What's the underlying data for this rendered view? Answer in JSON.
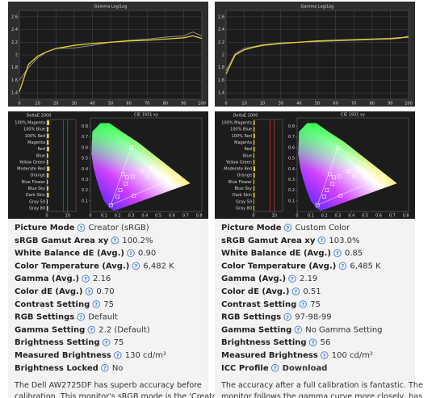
{
  "help_icon": "?",
  "columns": [
    {
      "gamma": {
        "title": "Gamma Log/Log",
        "x": [
          0,
          5,
          10,
          15,
          20,
          30,
          40,
          50,
          60,
          70,
          80,
          90,
          95,
          100
        ],
        "xlim": [
          0,
          100
        ],
        "xticks": [
          0,
          10,
          20,
          30,
          40,
          50,
          60,
          70,
          80,
          90,
          100
        ],
        "ylim": [
          1.3,
          2.7
        ],
        "yticks": [
          1.4,
          1.6,
          1.8,
          2,
          2.2,
          2.4,
          2.6
        ],
        "series": [
          {
            "color": "#e6d228",
            "values": [
              1.42,
              1.85,
              1.98,
              2.05,
              2.1,
              2.15,
              2.18,
              2.2,
              2.22,
              2.23,
              2.25,
              2.27,
              2.3,
              2.26
            ]
          },
          {
            "color": "#9a9a9a",
            "values": [
              1.6,
              1.8,
              1.95,
              2.05,
              2.1,
              2.11,
              2.15,
              2.2,
              2.23,
              2.25,
              2.28,
              2.3,
              2.36,
              2.3
            ]
          }
        ]
      },
      "delta": {
        "title": "DeltaE 2000",
        "labels": [
          "100% Magenta",
          "100% Blue",
          "100% Red",
          "Magenta",
          "Red",
          "Blue",
          "Yellow Green",
          "Moderate Red",
          "Orange",
          "Blue Flower",
          "Blue Sky",
          "Dark Skin",
          "Gray 50",
          "Gray 80"
        ],
        "values": [
          1.2,
          0.8,
          1.0,
          0.9,
          1.1,
          0.7,
          0.6,
          1.3,
          0.9,
          0.5,
          0.8,
          1.0,
          0.4,
          0.6
        ],
        "color": "#e6d228",
        "xlim": [
          0,
          14
        ],
        "xticks": [
          0,
          10
        ],
        "limits": [
          8,
          10
        ]
      },
      "cie": {
        "title": "CIE 1931 xy",
        "xlim": [
          0,
          0.82
        ],
        "ylim": [
          0,
          0.88
        ],
        "xticks": [
          0,
          0.1,
          0.2,
          0.3,
          0.4,
          0.5,
          0.6,
          0.7,
          0.8
        ],
        "yticks": [
          0.1,
          0.2,
          0.3,
          0.4,
          0.5,
          0.6,
          0.7,
          0.8
        ],
        "points_x": [
          0.64,
          0.3,
          0.15,
          0.32,
          0.42,
          0.5,
          0.57,
          0.38,
          0.27,
          0.22,
          0.26,
          0.31,
          0.2,
          0.24,
          0.45
        ],
        "points_y": [
          0.33,
          0.6,
          0.06,
          0.15,
          0.33,
          0.33,
          0.33,
          0.38,
          0.32,
          0.2,
          0.26,
          0.33,
          0.14,
          0.35,
          0.41
        ]
      },
      "specs": [
        [
          "Picture Mode",
          "Creator (sRGB)"
        ],
        [
          "sRGB Gamut Area xy",
          "100.2%"
        ],
        [
          "White Balance dE (Avg.)",
          "0.90"
        ],
        [
          "Color Temperature (Avg.)",
          "6,482 K"
        ],
        [
          "Gamma (Avg.)",
          "2.16"
        ],
        [
          "Color dE (Avg.)",
          "0.70"
        ],
        [
          "Contrast Setting",
          "75"
        ],
        [
          "RGB Settings",
          "Default"
        ],
        [
          "Gamma Setting",
          "2.2 (Default)"
        ],
        [
          "Brightness Setting",
          "75"
        ],
        [
          "Measured Brightness",
          "130 cd/m²"
        ],
        [
          "Brightness Locked",
          "No"
        ]
      ],
      "paragraph": [
        "The Dell AW2725DF has superb accuracy before",
        "calibration. This monitor's sRGB mode is the 'Creator'"
      ]
    },
    {
      "gamma": {
        "title": "Gamma Log/Log",
        "x": [
          0,
          5,
          10,
          15,
          20,
          30,
          40,
          50,
          60,
          70,
          80,
          90,
          95,
          100
        ],
        "xlim": [
          0,
          100
        ],
        "xticks": [
          0,
          10,
          20,
          30,
          40,
          50,
          60,
          70,
          80,
          90,
          100
        ],
        "ylim": [
          1.3,
          2.7
        ],
        "yticks": [
          1.4,
          1.6,
          1.8,
          2,
          2.2,
          2.4,
          2.6
        ],
        "series": [
          {
            "color": "#e6d228",
            "values": [
              1.7,
              2.0,
              2.08,
              2.12,
              2.15,
              2.18,
              2.2,
              2.22,
              2.23,
              2.24,
              2.25,
              2.26,
              2.27,
              2.28
            ]
          },
          {
            "color": "#9a9a9a",
            "values": [
              1.75,
              2.02,
              2.1,
              2.13,
              2.16,
              2.19,
              2.2,
              2.21,
              2.22,
              2.23,
              2.24,
              2.25,
              2.26,
              2.3
            ]
          }
        ]
      },
      "delta": {
        "title": "DeltaE 2000",
        "labels": [
          "100% Magenta",
          "100% Blue",
          "100% Red",
          "Magenta",
          "Red",
          "Blue",
          "Yellow Green",
          "Moderate Red",
          "Orange",
          "Blue Flower",
          "Blue Sky",
          "Dark Skin",
          "Gray 50",
          "Gray 80"
        ],
        "values": [
          0.6,
          0.5,
          0.7,
          0.5,
          0.6,
          0.4,
          0.5,
          0.8,
          0.6,
          0.4,
          0.5,
          0.6,
          0.3,
          0.4
        ],
        "color": "#e6d228",
        "xlim": [
          0,
          14
        ],
        "xticks": [
          0,
          10
        ],
        "limits": [
          8,
          10
        ]
      },
      "cie": {
        "title": "CIE 1931 xy",
        "xlim": [
          0,
          0.82
        ],
        "ylim": [
          0,
          0.88
        ],
        "xticks": [
          0,
          0.1,
          0.2,
          0.3,
          0.4,
          0.5,
          0.6,
          0.7,
          0.8
        ],
        "yticks": [
          0.1,
          0.2,
          0.3,
          0.4,
          0.5,
          0.6,
          0.7,
          0.8
        ],
        "points_x": [
          0.64,
          0.3,
          0.15,
          0.32,
          0.42,
          0.5,
          0.57,
          0.38,
          0.27,
          0.22,
          0.26,
          0.31,
          0.2,
          0.24,
          0.45
        ],
        "points_y": [
          0.33,
          0.6,
          0.06,
          0.15,
          0.33,
          0.33,
          0.33,
          0.38,
          0.32,
          0.2,
          0.26,
          0.33,
          0.14,
          0.35,
          0.41
        ]
      },
      "specs": [
        [
          "Picture Mode",
          "Custom Color"
        ],
        [
          "sRGB Gamut Area xy",
          "103.0%"
        ],
        [
          "White Balance dE (Avg.)",
          "0.85"
        ],
        [
          "Color Temperature (Avg.)",
          "6,485 K"
        ],
        [
          "Gamma (Avg.)",
          "2.19"
        ],
        [
          "Color dE (Avg.)",
          "0.51"
        ],
        [
          "Contrast Setting",
          "75"
        ],
        [
          "RGB Settings",
          "97-98-99"
        ],
        [
          "Gamma Setting",
          "No Gamma Setting"
        ],
        [
          "Brightness Setting",
          "56"
        ],
        [
          "Measured Brightness",
          "100 cd/m²"
        ],
        [
          "ICC Profile",
          "Download"
        ]
      ],
      "paragraph": [
        "The accuracy after a full calibration is fantastic. The",
        "monitor follows the gamma curve more closely, has"
      ]
    }
  ]
}
